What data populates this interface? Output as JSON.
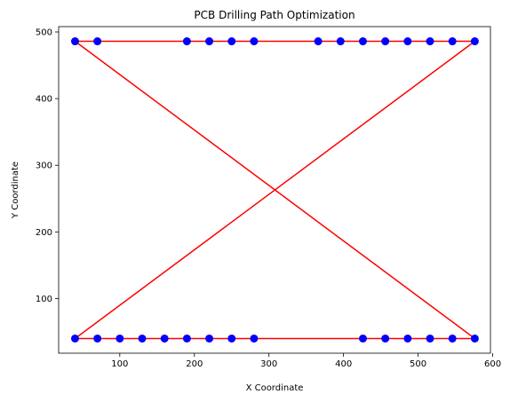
{
  "chart_data": {
    "type": "scatter",
    "title": "PCB Drilling Path Optimization",
    "xlabel": "X Coordinate",
    "ylabel": "Y Coordinate",
    "xlim": [
      18,
      597
    ],
    "ylim": [
      18,
      508
    ],
    "xticks": [
      100,
      200,
      300,
      400,
      500,
      600
    ],
    "yticks": [
      100,
      200,
      300,
      400,
      500
    ],
    "grid": false,
    "point_color": "#0000ff",
    "path_color": "#ff0000",
    "points": [
      {
        "x": 40,
        "y": 486
      },
      {
        "x": 70,
        "y": 486
      },
      {
        "x": 190,
        "y": 486
      },
      {
        "x": 220,
        "y": 486
      },
      {
        "x": 250,
        "y": 486
      },
      {
        "x": 280,
        "y": 486
      },
      {
        "x": 366,
        "y": 486
      },
      {
        "x": 396,
        "y": 486
      },
      {
        "x": 426,
        "y": 486
      },
      {
        "x": 456,
        "y": 486
      },
      {
        "x": 486,
        "y": 486
      },
      {
        "x": 516,
        "y": 486
      },
      {
        "x": 546,
        "y": 486
      },
      {
        "x": 576,
        "y": 486
      },
      {
        "x": 40,
        "y": 40
      },
      {
        "x": 70,
        "y": 40
      },
      {
        "x": 100,
        "y": 40
      },
      {
        "x": 130,
        "y": 40
      },
      {
        "x": 160,
        "y": 40
      },
      {
        "x": 190,
        "y": 40
      },
      {
        "x": 220,
        "y": 40
      },
      {
        "x": 250,
        "y": 40
      },
      {
        "x": 280,
        "y": 40
      },
      {
        "x": 426,
        "y": 40
      },
      {
        "x": 456,
        "y": 40
      },
      {
        "x": 486,
        "y": 40
      },
      {
        "x": 516,
        "y": 40
      },
      {
        "x": 546,
        "y": 40
      },
      {
        "x": 576,
        "y": 40
      }
    ],
    "path": [
      {
        "x": 40,
        "y": 486
      },
      {
        "x": 576,
        "y": 486
      },
      {
        "x": 40,
        "y": 40
      },
      {
        "x": 576,
        "y": 40
      },
      {
        "x": 40,
        "y": 486
      }
    ]
  }
}
